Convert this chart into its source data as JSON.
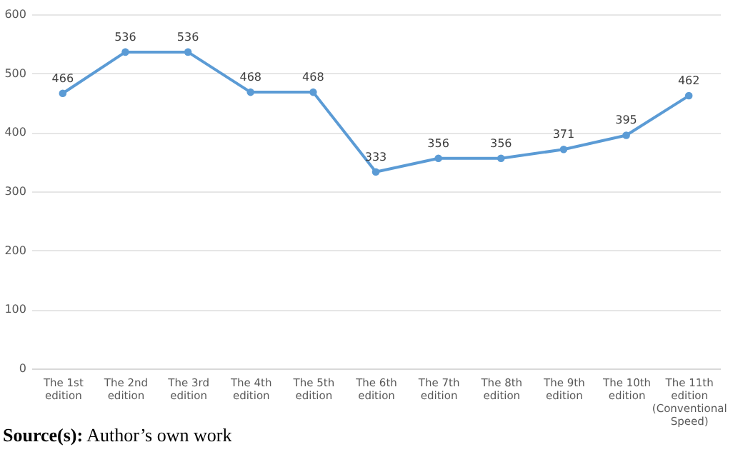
{
  "chart_data": {
    "type": "line",
    "categories": [
      "The 1st edition",
      "The 2nd edition",
      "The 3rd edition",
      "The 4th edition",
      "The 5th edition",
      "The 6th edition",
      "The 7th edition",
      "The 8th edition",
      "The 9th edition",
      "The 10th edition",
      "The 11th edition (Conventional Speed)"
    ],
    "series": [
      {
        "color": "#5b9bd5",
        "values": [
          466,
          536,
          536,
          468,
          468,
          333,
          356,
          356,
          371,
          395,
          462
        ]
      }
    ],
    "ylim": [
      0,
      600
    ],
    "yticks": [
      0,
      100,
      200,
      300,
      400,
      500,
      600
    ],
    "grid": "y",
    "marker": "circle",
    "line_style": "solid",
    "data_labels": true,
    "legend": false,
    "annotations": [
      "Source(s): Author’s own work"
    ]
  }
}
